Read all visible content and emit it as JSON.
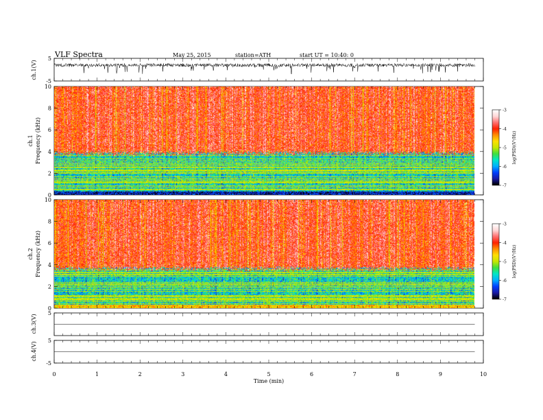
{
  "header": {
    "title": "VLF  Spectra",
    "date": "May 25, 2015",
    "station": "station=ATH",
    "start": "start  UT  =   10:40: 0"
  },
  "chart_data": [
    {
      "type": "line",
      "name": "ch1-waveform",
      "ylabel": "ch.1(V)",
      "ylim": [
        -5,
        5
      ],
      "yticks": [
        5,
        -5
      ],
      "xlim": [
        0,
        10
      ],
      "trace_range_min": [
        0,
        9.8
      ],
      "trace_mean_v": 2.0,
      "trace_spread_v": 1.5
    },
    {
      "type": "heatmap",
      "name": "ch1-spectrogram",
      "ylabel": "ch.1\nFrequency  (kHz)",
      "ylim": [
        0,
        10
      ],
      "yticks": [
        0,
        2,
        4,
        6,
        8,
        10
      ],
      "x_data_range_min": [
        0,
        9.8
      ],
      "colorbar": {
        "label": "log(PSD)(V²/Hz)",
        "range": [
          -7,
          -3
        ],
        "ticks": [
          -3,
          -4,
          -5,
          -6,
          -7
        ]
      },
      "band_notes": [
        {
          "freq_khz": [
            0,
            0.3
          ],
          "level": "-6.5"
        },
        {
          "freq_khz": [
            0.3,
            3.8
          ],
          "level": "-5.8 (cyan/green with horizontal lines)"
        },
        {
          "freq_khz": [
            3.8,
            10
          ],
          "level": "-3.8 (red/yellow)"
        }
      ]
    },
    {
      "type": "heatmap",
      "name": "ch2-spectrogram",
      "ylabel": "ch.2\nFrequency  (kHz)",
      "ylim": [
        0,
        10
      ],
      "yticks": [
        0,
        2,
        4,
        6,
        8,
        10
      ],
      "x_data_range_min": [
        0,
        9.8
      ],
      "colorbar": {
        "label": "log(PSD)(V²/Hz)",
        "range": [
          -7,
          -3
        ],
        "ticks": [
          -3,
          -4,
          -5,
          -6,
          -7
        ]
      },
      "band_notes": [
        {
          "freq_khz": [
            0,
            0.3
          ],
          "level": "-5.0"
        },
        {
          "freq_khz": [
            0.3,
            3.6
          ],
          "level": "-5.6 (cyan/green with horizontal lines)"
        },
        {
          "freq_khz": [
            3.6,
            10
          ],
          "level": "-3.8 (red/yellow)"
        }
      ]
    },
    {
      "type": "line",
      "name": "ch3-waveform",
      "ylabel": "ch.3(V)",
      "ylim": [
        -5,
        5
      ],
      "yticks": [
        5
      ],
      "trace_value_v": 0.0
    },
    {
      "type": "line",
      "name": "ch4-waveform",
      "ylabel": "ch.4(V)",
      "ylim": [
        -5,
        5
      ],
      "yticks": [
        5,
        -5
      ],
      "trace_value_v": 0.0
    }
  ],
  "xaxis": {
    "label": "Time  (min)",
    "ticks": [
      "0",
      "1",
      "2",
      "3",
      "4",
      "5",
      "6",
      "7",
      "8",
      "9",
      "10"
    ]
  },
  "colors": {
    "scale": [
      "#000000",
      "#1a1aa8",
      "#0040ff",
      "#00b0ff",
      "#00e8c8",
      "#40e040",
      "#c8e800",
      "#ffe000",
      "#ff9000",
      "#ff2000",
      "#ff7070",
      "#ffd8d8",
      "#ffffff"
    ]
  }
}
